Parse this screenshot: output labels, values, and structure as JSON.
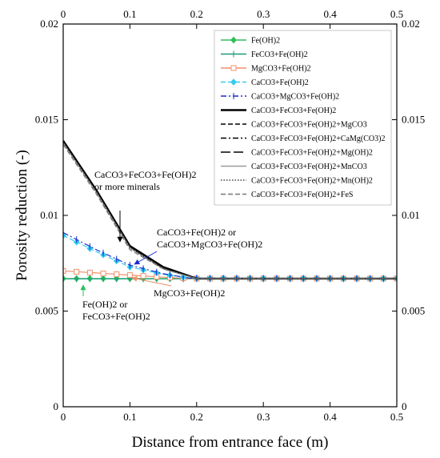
{
  "chart_data": {
    "type": "line",
    "xlabel": "Distance from entrance face (m)",
    "ylabel": "Porosity reduction (-)",
    "xlim": [
      0,
      0.5
    ],
    "ylim": [
      0,
      0.02
    ],
    "x_ticks": [
      "0",
      "0.1",
      "0.2",
      "0.3",
      "0.4",
      "0.5"
    ],
    "y_ticks": [
      "0",
      "0.005",
      "0.01",
      "0.015",
      "0.02"
    ],
    "grid": false,
    "legend_position": "top-right",
    "series": [
      {
        "name": "Fe(OH)2",
        "color": "#2ebf5a",
        "dash": "solid",
        "marker": "diamond-filled",
        "x": [
          0,
          0.5
        ],
        "y": [
          0.0067,
          0.0067
        ]
      },
      {
        "name": "FeCO3+Fe(OH)2",
        "color": "#1a9c7c",
        "dash": "solid",
        "marker": "tick",
        "x": [
          0,
          0.5
        ],
        "y": [
          0.00668,
          0.00668
        ]
      },
      {
        "name": "MgCO3+Fe(OH)2",
        "color": "#f0906a",
        "dash": "solid",
        "marker": "square-open",
        "x": [
          0,
          0.05,
          0.1,
          0.15,
          0.19,
          0.5
        ],
        "y": [
          0.0071,
          0.00699,
          0.00688,
          0.00677,
          0.0067,
          0.0067
        ]
      },
      {
        "name": "CaCO3+Fe(OH)2",
        "color": "#33ccee",
        "dash": "dashed",
        "marker": "diamond-filled",
        "x": [
          0,
          0.05,
          0.1,
          0.15,
          0.19,
          0.5
        ],
        "y": [
          0.00895,
          0.0081,
          0.0073,
          0.00692,
          0.00672,
          0.0067
        ]
      },
      {
        "name": "CaCO3+MgCO3+Fe(OH)2",
        "color": "#1a2ad0",
        "dash": "dashdot",
        "marker": "tick",
        "x": [
          0,
          0.05,
          0.1,
          0.15,
          0.19,
          0.5
        ],
        "y": [
          0.0091,
          0.0082,
          0.0074,
          0.00695,
          0.00672,
          0.0067
        ]
      },
      {
        "name": "CaCO3+FeCO3+Fe(OH)2",
        "color": "#000000",
        "dash": "solid",
        "width": 2.4,
        "x": [
          0,
          0.05,
          0.1,
          0.15,
          0.2,
          0.5
        ],
        "y": [
          0.0139,
          0.0113,
          0.0084,
          0.0073,
          0.0067,
          0.0067
        ]
      },
      {
        "name": "CaCO3+FeCO3+Fe(OH)2+MgCO3",
        "color": "#000000",
        "dash": "dashed",
        "x": [
          0,
          0.05,
          0.1,
          0.15,
          0.2,
          0.5
        ],
        "y": [
          0.0138,
          0.0112,
          0.0083,
          0.0072,
          0.0067,
          0.0067
        ]
      },
      {
        "name": "CaCO3+FeCO3+Fe(OH)2+CaMg(CO3)2",
        "color": "#000000",
        "dash": "dashdot",
        "x": [
          0,
          0.05,
          0.1,
          0.15,
          0.2,
          0.5
        ],
        "y": [
          0.01385,
          0.01125,
          0.00835,
          0.00725,
          0.0067,
          0.0067
        ]
      },
      {
        "name": "CaCO3+FeCO3+Fe(OH)2+Mg(OH)2",
        "color": "#000000",
        "dash": "longdash",
        "x": [
          0,
          0.05,
          0.1,
          0.15,
          0.2,
          0.5
        ],
        "y": [
          0.0139,
          0.0113,
          0.0084,
          0.0073,
          0.0067,
          0.0067
        ]
      },
      {
        "name": "CaCO3+FeCO3+Fe(OH)2+MnCO3",
        "color": "#999999",
        "dash": "solid",
        "x": [
          0,
          0.05,
          0.1,
          0.15,
          0.2,
          0.5
        ],
        "y": [
          0.0138,
          0.0112,
          0.0083,
          0.0072,
          0.0067,
          0.0067
        ]
      },
      {
        "name": "CaCO3+FeCO3+Fe(OH)2+Mn(OH)2",
        "color": "#444444",
        "dash": "dotted",
        "x": [
          0,
          0.05,
          0.1,
          0.15,
          0.2,
          0.5
        ],
        "y": [
          0.0138,
          0.0112,
          0.0083,
          0.0072,
          0.0067,
          0.0067
        ]
      },
      {
        "name": "CaCO3+FeCO3+Fe(OH)2+FeS",
        "color": "#777777",
        "dash": "dashed",
        "x": [
          0,
          0.05,
          0.1,
          0.15,
          0.2,
          0.5
        ],
        "y": [
          0.0137,
          0.0111,
          0.0082,
          0.0072,
          0.0067,
          0.0067
        ]
      }
    ],
    "annotations": [
      {
        "lines": [
          "CaCO3+FeCO3+Fe(OH)2",
          "or more minerals"
        ],
        "arrow_to": [
          0.09,
          0.0083
        ],
        "color": "#000000"
      },
      {
        "lines": [
          "CaCO3+Fe(OH)2 or",
          "CaCO3+MgCO3+Fe(OH)2"
        ],
        "arrow_to": [
          0.1,
          0.0072
        ],
        "color": "#1a2ad0"
      },
      {
        "lines": [
          "MgCO3+Fe(OH)2"
        ],
        "arrow_to": [
          0.13,
          0.0068
        ],
        "color": "#f0906a"
      },
      {
        "lines": [
          "Fe(OH)2 or",
          "FeCO3+Fe(OH)2"
        ],
        "arrow_to": [
          0.06,
          0.0066
        ],
        "color": "#2ebf5a"
      }
    ]
  }
}
